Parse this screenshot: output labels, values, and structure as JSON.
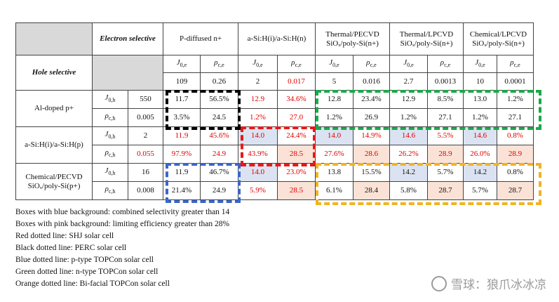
{
  "header": {
    "electron_selective": "Electron selective",
    "hole_selective": "Hole selective",
    "columns": [
      "P-diffused n+",
      "a-Si:H(i)/a-Si:H(n)",
      "Thermal/PECVD SiOₓ/poly-Si(n+)",
      "Thermal/LPCVD SiOₓ/poly-Si(n+)",
      "Chemical/LPCVD SiOₓ/poly-Si(n+)"
    ],
    "j0e": "J0,e",
    "rhoce": "ρc,e",
    "j0h": "J0,h",
    "rhoch": "ρc,h",
    "electron_values": [
      "109",
      "0.26",
      "2",
      "0.017",
      "5",
      "0.016",
      "2.7",
      "0.0013",
      "10",
      "0.0001"
    ]
  },
  "rows": [
    {
      "name": "Al-doped p+",
      "j0h": "550",
      "rhoch": "0.005",
      "j_row": [
        "11.7",
        "56.5%",
        "12.9",
        "34.6%",
        "12.8",
        "23.4%",
        "12.9",
        "8.5%",
        "13.0",
        "1.2%"
      ],
      "r_row": [
        "3.5%",
        "24.5",
        "1.2%",
        "27.0",
        "1.2%",
        "26.9",
        "1.2%",
        "27.1",
        "1.2%",
        "27.1"
      ]
    },
    {
      "name": "a-Si:H(i)/a-Si:H(p)",
      "j0h": "2",
      "rhoch": "0.055",
      "j_row": [
        "11.9",
        "45.6%",
        "14.0",
        "24.4%",
        "14.0",
        "14.9%",
        "14.6",
        "5.5%",
        "14.6",
        "0.8%"
      ],
      "r_row": [
        "97.9%",
        "24.9",
        "43.9%",
        "28.5",
        "27.6%",
        "28.6",
        "26.2%",
        "28.9",
        "26.0%",
        "28.9"
      ]
    },
    {
      "name": "Chemical/PECVD SiOₓ/poly-Si(p+)",
      "j0h": "16",
      "rhoch": "0.008",
      "j_row": [
        "11.9",
        "46.7%",
        "14.0",
        "23.0%",
        "13.8",
        "15.5%",
        "14.2",
        "5.7%",
        "14.2",
        "0.8%"
      ],
      "r_row": [
        "21.4%",
        "24.9",
        "5.9%",
        "28.5",
        "6.1%",
        "28.4",
        "5.8%",
        "28.7",
        "5.7%",
        "28.7"
      ]
    }
  ],
  "notes": [
    "Boxes with blue background: combined selectivity greater than 14",
    "Boxes with pink background: limiting efficiency greater than 28%",
    "Red dotted line: SHJ solar cell",
    "Black dotted line: PERC solar cell",
    "Blue dotted line: p-type TOPCon solar cell",
    "Green dotted line: n-type TOPCon solar cell",
    "Orange dotted line: Bi-facial TOPCon solar cell"
  ],
  "watermark": "雪球：狼爪冰冰凉",
  "colors": {
    "red_text": "#e00000",
    "blue_bg": "#dbe3f2",
    "pink_bg": "#fbe2d6",
    "black_box": "#000000",
    "red_box": "#e61a1a",
    "green_box": "#1aa84a",
    "blue_box": "#3a66c8",
    "orange_box": "#f0b422"
  }
}
